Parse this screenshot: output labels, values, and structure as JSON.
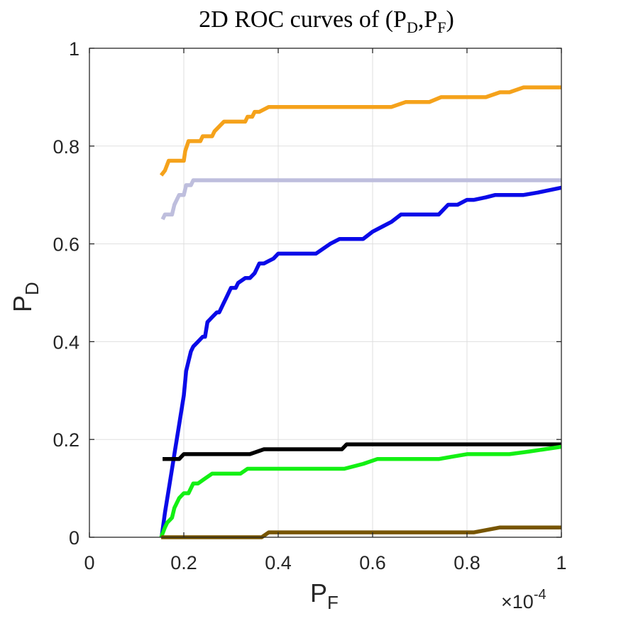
{
  "chart_data": {
    "type": "line",
    "title": {
      "main": "2D ROC curves of (P",
      "sub1": "D",
      "mid": ",P",
      "sub2": "F",
      "end": ")"
    },
    "xlabel": {
      "main": "P",
      "sub": "F"
    },
    "ylabel": {
      "main": "P",
      "sub": "D"
    },
    "x_exponent": {
      "prefix": "×10",
      "power": "-4"
    },
    "xlim": [
      0,
      1
    ],
    "ylim": [
      0,
      1
    ],
    "xticks": [
      0,
      0.2,
      0.4,
      0.6,
      0.8,
      1
    ],
    "xtick_labels": [
      "0",
      "0.2",
      "0.4",
      "0.6",
      "0.8",
      "1"
    ],
    "yticks": [
      0,
      0.2,
      0.4,
      0.6,
      0.8,
      1
    ],
    "ytick_labels": [
      "0",
      "0.2",
      "0.4",
      "0.6",
      "0.8",
      "1"
    ],
    "grid": true,
    "series": [
      {
        "name": "orange",
        "color": "#f5a21b",
        "x": [
          0.152,
          0.16,
          0.168,
          0.176,
          0.2,
          0.203,
          0.21,
          0.225,
          0.235,
          0.24,
          0.26,
          0.265,
          0.275,
          0.285,
          0.33,
          0.335,
          0.345,
          0.35,
          0.36,
          0.38,
          0.39,
          0.64,
          0.67,
          0.72,
          0.745,
          0.84,
          0.87,
          0.89,
          0.92,
          1.0
        ],
        "y": [
          0.74,
          0.75,
          0.77,
          0.77,
          0.77,
          0.79,
          0.81,
          0.81,
          0.81,
          0.82,
          0.82,
          0.83,
          0.84,
          0.85,
          0.85,
          0.86,
          0.86,
          0.87,
          0.87,
          0.88,
          0.88,
          0.88,
          0.89,
          0.89,
          0.9,
          0.9,
          0.91,
          0.91,
          0.92,
          0.92
        ]
      },
      {
        "name": "lavender",
        "color": "#bebedd",
        "x": [
          0.155,
          0.16,
          0.175,
          0.18,
          0.19,
          0.2,
          0.205,
          0.215,
          0.22,
          1.0
        ],
        "y": [
          0.65,
          0.66,
          0.66,
          0.68,
          0.7,
          0.7,
          0.72,
          0.72,
          0.73,
          0.73
        ]
      },
      {
        "name": "blue",
        "color": "#0a0ae8",
        "x": [
          0.153,
          0.16,
          0.17,
          0.18,
          0.19,
          0.2,
          0.205,
          0.21,
          0.215,
          0.22,
          0.23,
          0.24,
          0.245,
          0.25,
          0.26,
          0.27,
          0.275,
          0.285,
          0.29,
          0.3,
          0.31,
          0.315,
          0.33,
          0.34,
          0.35,
          0.36,
          0.37,
          0.38,
          0.39,
          0.4,
          0.42,
          0.48,
          0.51,
          0.53,
          0.58,
          0.6,
          0.62,
          0.64,
          0.66,
          0.74,
          0.76,
          0.78,
          0.8,
          0.815,
          0.84,
          0.86,
          0.88,
          0.92,
          0.95,
          1.0
        ],
        "y": [
          0.0,
          0.05,
          0.11,
          0.17,
          0.23,
          0.29,
          0.34,
          0.36,
          0.38,
          0.39,
          0.4,
          0.41,
          0.41,
          0.44,
          0.45,
          0.46,
          0.46,
          0.48,
          0.49,
          0.51,
          0.51,
          0.52,
          0.53,
          0.53,
          0.54,
          0.56,
          0.56,
          0.565,
          0.57,
          0.58,
          0.58,
          0.58,
          0.6,
          0.61,
          0.61,
          0.625,
          0.635,
          0.645,
          0.66,
          0.66,
          0.68,
          0.68,
          0.69,
          0.69,
          0.695,
          0.7,
          0.7,
          0.7,
          0.705,
          0.715
        ]
      },
      {
        "name": "black",
        "color": "#000000",
        "x": [
          0.155,
          0.19,
          0.2,
          0.34,
          0.37,
          0.535,
          0.545,
          1.0
        ],
        "y": [
          0.16,
          0.16,
          0.17,
          0.17,
          0.18,
          0.18,
          0.19,
          0.19
        ]
      },
      {
        "name": "green",
        "color": "#13f013",
        "x": [
          0.152,
          0.16,
          0.165,
          0.175,
          0.18,
          0.19,
          0.2,
          0.21,
          0.22,
          0.23,
          0.245,
          0.26,
          0.275,
          0.32,
          0.335,
          0.36,
          0.54,
          0.58,
          0.61,
          0.74,
          0.77,
          0.8,
          0.82,
          0.89,
          0.93,
          1.0
        ],
        "y": [
          0.0,
          0.02,
          0.03,
          0.04,
          0.06,
          0.08,
          0.09,
          0.09,
          0.11,
          0.11,
          0.12,
          0.13,
          0.13,
          0.13,
          0.14,
          0.14,
          0.14,
          0.15,
          0.16,
          0.16,
          0.165,
          0.17,
          0.17,
          0.17,
          0.175,
          0.185
        ]
      },
      {
        "name": "brown",
        "color": "#775500",
        "x": [
          0.152,
          0.365,
          0.38,
          0.815,
          0.87,
          1.0
        ],
        "y": [
          0.0,
          0.0,
          0.01,
          0.01,
          0.02,
          0.02
        ]
      }
    ]
  }
}
